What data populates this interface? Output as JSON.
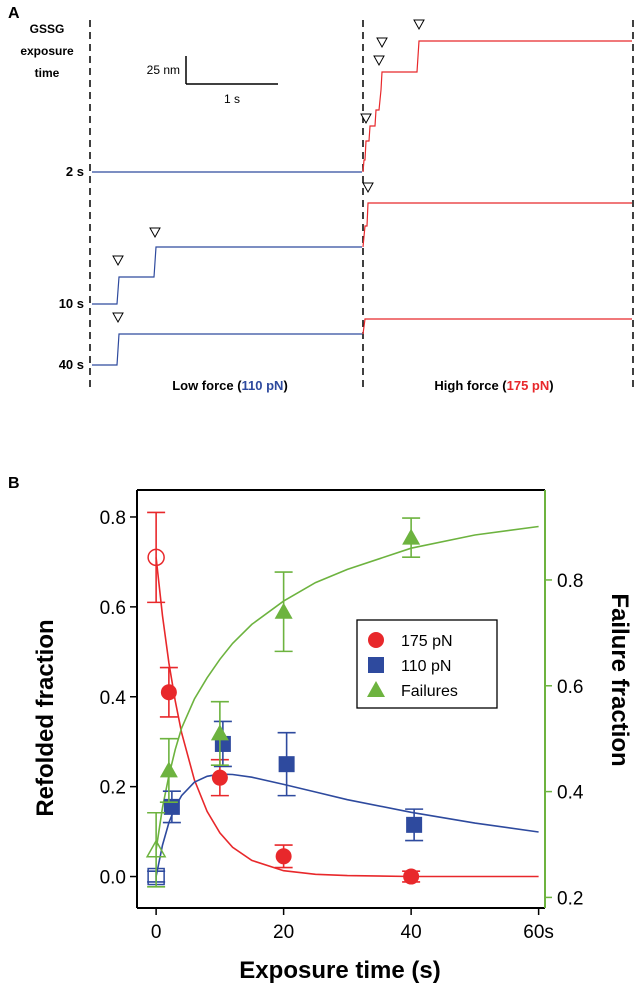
{
  "panel_a": {
    "label": "A",
    "left_header": [
      "GSSG",
      "exposure",
      "time"
    ],
    "scale_bar": {
      "vertical": "25 nm",
      "horizontal": "1 s"
    },
    "traces": [
      {
        "label": "2 s",
        "low_steps": [],
        "high_steps": 4
      },
      {
        "label": "10 s",
        "low_steps": 2,
        "high_steps": 1
      },
      {
        "label": "40 s",
        "low_steps": 1,
        "high_steps": 0
      }
    ],
    "low_force": {
      "prefix": "Low force (",
      "value": "110 pN",
      "suffix": ")",
      "color": "#2e4a9e"
    },
    "high_force": {
      "prefix": "High force (",
      "value": "175 pN",
      "suffix": ")",
      "color": "#e8282b"
    }
  },
  "panel_b": {
    "label": "B"
  },
  "chart_data": {
    "type": "scatter",
    "xlabel": "Exposure time (s)",
    "ylabel_left": "Refolded fraction",
    "ylabel_right": "Failure fraction",
    "xlim": [
      -3,
      61
    ],
    "ylim_left": [
      -0.07,
      0.86
    ],
    "ylim_right": [
      0.18,
      0.97
    ],
    "x_ticks": [
      {
        "value": 0,
        "label": "0"
      },
      {
        "value": 20,
        "label": "20"
      },
      {
        "value": 40,
        "label": "40"
      },
      {
        "value": 60,
        "label": "60s"
      }
    ],
    "y_ticks_left": [
      0.0,
      0.2,
      0.4,
      0.6,
      0.8
    ],
    "y_tick_labels_left": [
      "0.0",
      "0.2",
      "0.4",
      "0.6",
      "0.8"
    ],
    "y_ticks_right": [
      0.2,
      0.4,
      0.6,
      0.8
    ],
    "y_tick_labels_right": [
      "0.2",
      "0.4",
      "0.6",
      "0.8"
    ],
    "series": [
      {
        "name": "175 pN",
        "axis": "left",
        "marker": "circle",
        "color": "#e8282b",
        "x": [
          0,
          2,
          10,
          20,
          40
        ],
        "y": [
          0.71,
          0.41,
          0.22,
          0.045,
          0.0
        ],
        "err": [
          0.1,
          0.055,
          0.04,
          0.025,
          0.012
        ],
        "hollow": [
          true,
          false,
          false,
          false,
          false
        ]
      },
      {
        "name": "110 pN",
        "axis": "left",
        "marker": "square",
        "color": "#2e4a9e",
        "x": [
          0,
          2,
          10,
          20,
          40
        ],
        "y": [
          0.0,
          0.155,
          0.295,
          0.25,
          0.115
        ],
        "err": [
          0.012,
          0.035,
          0.05,
          0.07,
          0.035
        ],
        "hollow": [
          true,
          false,
          false,
          false,
          false
        ]
      },
      {
        "name": "Failures",
        "axis": "right",
        "marker": "triangle",
        "color": "#6db33f",
        "x": [
          0,
          2,
          10,
          20,
          40
        ],
        "y": [
          0.29,
          0.44,
          0.51,
          0.74,
          0.88
        ],
        "err": [
          0.07,
          0.06,
          0.06,
          0.075,
          0.037
        ],
        "hollow": [
          true,
          false,
          false,
          false,
          false
        ]
      }
    ],
    "fits": [
      {
        "series": "175 pN",
        "axis": "left",
        "color": "#e8282b",
        "x": [
          0,
          1,
          2,
          3,
          4,
          6,
          8,
          10,
          12,
          15,
          20,
          25,
          30,
          40,
          50,
          60
        ],
        "y": [
          0.71,
          0.58,
          0.475,
          0.39,
          0.32,
          0.215,
          0.145,
          0.097,
          0.065,
          0.036,
          0.013,
          0.005,
          0.002,
          0.0,
          0.0,
          0.0
        ]
      },
      {
        "series": "110 pN",
        "axis": "left",
        "color": "#2e4a9e",
        "x": [
          0,
          1,
          2,
          3,
          4,
          6,
          8,
          10,
          12,
          15,
          20,
          25,
          30,
          40,
          50,
          60
        ],
        "y": [
          0.0,
          0.07,
          0.12,
          0.155,
          0.18,
          0.21,
          0.223,
          0.228,
          0.227,
          0.221,
          0.205,
          0.188,
          0.171,
          0.143,
          0.119,
          0.099
        ]
      },
      {
        "series": "Failures",
        "axis": "right",
        "color": "#6db33f",
        "x": [
          0,
          1,
          2,
          3,
          4,
          6,
          8,
          10,
          12,
          15,
          20,
          25,
          30,
          40,
          50,
          60
        ],
        "y": [
          0.29,
          0.37,
          0.43,
          0.48,
          0.52,
          0.575,
          0.615,
          0.65,
          0.68,
          0.716,
          0.76,
          0.795,
          0.82,
          0.86,
          0.885,
          0.901
        ]
      }
    ],
    "legend": {
      "placement": "center-right",
      "entries": [
        "175 pN",
        "110 pN",
        "Failures"
      ]
    }
  }
}
